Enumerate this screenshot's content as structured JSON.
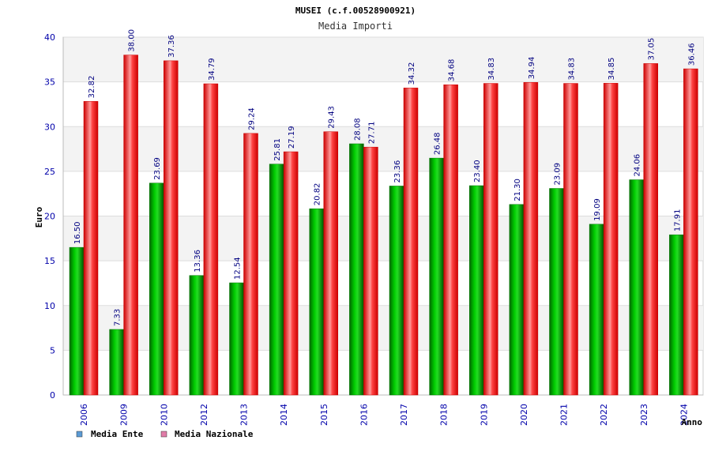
{
  "chart_data": {
    "type": "bar",
    "title": "MUSEI (c.f.00528900921)",
    "subtitle": "Media Importi",
    "xlabel": "Anno",
    "ylabel": "Euro",
    "ylim": [
      0,
      40
    ],
    "yticks": [
      0,
      5,
      10,
      15,
      20,
      25,
      30,
      35,
      40
    ],
    "categories": [
      "2006",
      "2009",
      "2010",
      "2012",
      "2013",
      "2014",
      "2015",
      "2016",
      "2017",
      "2018",
      "2019",
      "2020",
      "2021",
      "2022",
      "2023",
      "2024"
    ],
    "series": [
      {
        "name": "Media Ente",
        "color": "#00aa00",
        "values": [
          16.5,
          7.33,
          23.69,
          13.36,
          12.54,
          25.81,
          20.82,
          28.08,
          23.36,
          26.48,
          23.4,
          21.3,
          23.09,
          19.09,
          24.06,
          17.91
        ],
        "labels": [
          "16.50",
          "7.33",
          "23.69",
          "13.36",
          "12.54",
          "25.81",
          "20.82",
          "28.08",
          "23.36",
          "26.48",
          "23.40",
          "21.30",
          "23.09",
          "19.09",
          "24.06",
          "17.91"
        ]
      },
      {
        "name": "Media Nazionale",
        "color": "#ee1111",
        "values": [
          32.82,
          38.0,
          37.36,
          34.79,
          29.24,
          27.19,
          29.43,
          27.71,
          34.32,
          34.68,
          34.83,
          34.94,
          34.83,
          34.85,
          37.05,
          36.46
        ],
        "labels": [
          "32.82",
          "38.00",
          "37.36",
          "34.79",
          "29.24",
          "27.19",
          "29.43",
          "27.71",
          "34.32",
          "34.68",
          "34.83",
          "34.94",
          "34.83",
          "34.85",
          "37.05",
          "36.46"
        ]
      }
    ],
    "legend": {
      "position": "bottom-left",
      "items": [
        {
          "label": "Media Ente",
          "color": "#5b9bd5"
        },
        {
          "label": "Media Nazionale",
          "color": "#e07ca8"
        }
      ]
    },
    "grid": true
  }
}
